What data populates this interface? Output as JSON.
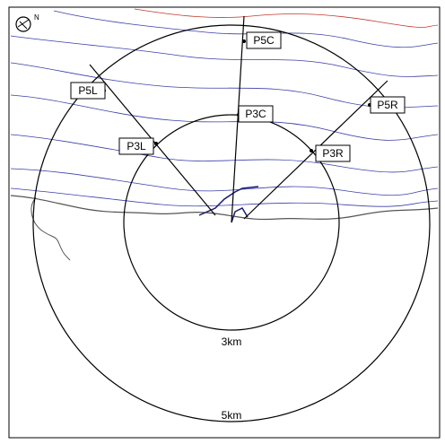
{
  "compass": "N",
  "points": [
    "P5C",
    "P5L",
    "P5R",
    "P3C",
    "P3L",
    "P3R"
  ],
  "rings": [
    "3km",
    "5km"
  ]
}
